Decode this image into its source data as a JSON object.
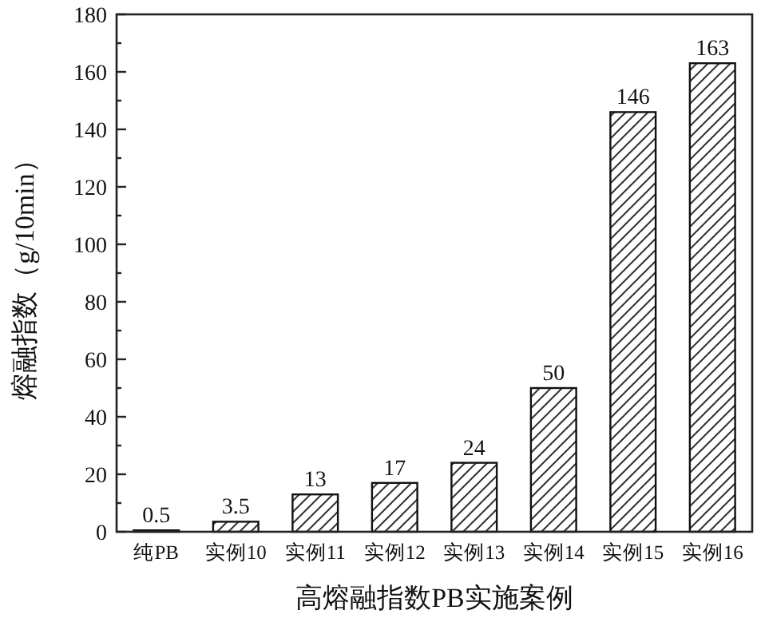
{
  "chart_data": {
    "type": "bar",
    "xlabel": "高熔融指数PB实施案例",
    "ylabel": "熔融指数（g/10min）",
    "categories": [
      "纯PB",
      "实例10",
      "实例11",
      "实例12",
      "实例13",
      "实例14",
      "实例15",
      "实例16"
    ],
    "values": [
      0.5,
      3.5,
      13,
      17,
      24,
      50,
      146,
      163
    ],
    "data_labels": true,
    "ylim": [
      0,
      180
    ],
    "yticks": [
      0,
      {
        "value": 10,
        "label": null
      },
      20,
      {
        "value": 30,
        "label": null
      },
      40,
      {
        "value": 50,
        "label": null
      },
      60,
      {
        "value": 70,
        "label": null
      },
      80,
      {
        "value": 90,
        "label": null
      },
      100,
      {
        "value": 110,
        "label": null
      },
      120,
      {
        "value": 130,
        "label": null
      },
      140,
      {
        "value": 150,
        "label": null
      },
      160,
      {
        "value": 170,
        "label": null
      },
      180
    ]
  }
}
